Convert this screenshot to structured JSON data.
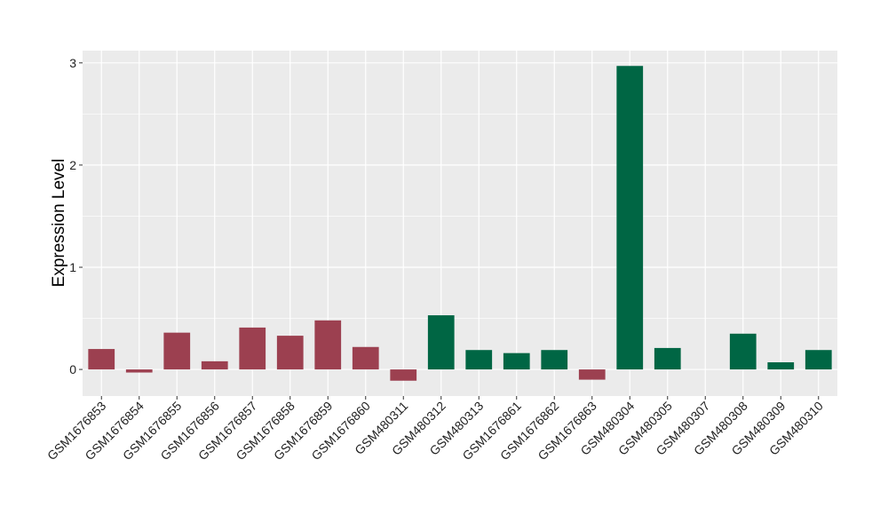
{
  "chart_data": {
    "type": "bar",
    "title": "",
    "xlabel": "",
    "ylabel": "Expression Level",
    "ylim": [
      -0.26,
      3.12
    ],
    "yticks": [
      0,
      1,
      2,
      3
    ],
    "grid": true,
    "legend": "none",
    "colors": {
      "group_a": "#9c4050",
      "group_b": "#006644",
      "panel": "#ebebeb",
      "grid": "#ffffff"
    },
    "categories": [
      "GSM1676853",
      "GSM1676854",
      "GSM1676855",
      "GSM1676856",
      "GSM1676857",
      "GSM1676858",
      "GSM1676859",
      "GSM1676860",
      "GSM480311",
      "GSM480312",
      "GSM480313",
      "GSM1676861",
      "GSM1676862",
      "GSM1676863",
      "GSM480304",
      "GSM480305",
      "GSM480307",
      "GSM480308",
      "GSM480309",
      "GSM480310"
    ],
    "values": [
      0.2,
      -0.03,
      0.36,
      0.08,
      0.41,
      0.33,
      0.48,
      0.22,
      -0.11,
      0.53,
      0.19,
      0.16,
      0.19,
      -0.1,
      2.97,
      0.21,
      0.0,
      0.35,
      0.07,
      0.19
    ],
    "groups": [
      "a",
      "a",
      "a",
      "a",
      "a",
      "a",
      "a",
      "a",
      "a",
      "b",
      "b",
      "b",
      "b",
      "a",
      "b",
      "b",
      "b",
      "b",
      "b",
      "b"
    ]
  }
}
